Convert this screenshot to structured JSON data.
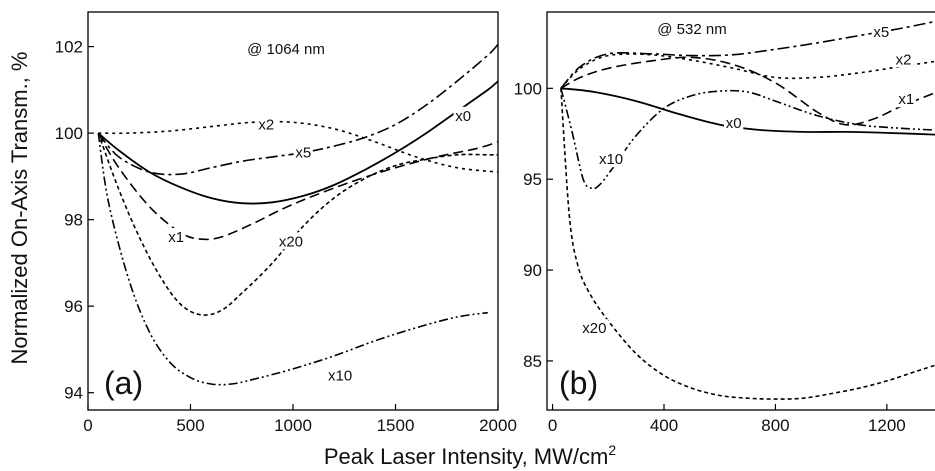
{
  "figure": {
    "ylabel": "Normalized On-Axis Transm., %",
    "xlabel_main": "Peak Laser Intensity, MW/cm",
    "xlabel_superscript": "2"
  },
  "chart_data": [
    {
      "type": "line",
      "panel": "(a)",
      "annotation": "@ 1064 nm",
      "xlim": [
        0,
        2000
      ],
      "ylim": [
        93.6,
        102.8
      ],
      "xticks": [
        0,
        500,
        1000,
        1500,
        2000
      ],
      "yticks": [
        94,
        96,
        98,
        100,
        102
      ],
      "xtick_labels": [
        "0",
        "500",
        "1000",
        "1500",
        "2000"
      ],
      "ytick_labels": [
        "94",
        "96",
        "98",
        "100",
        "102"
      ],
      "series": [
        {
          "name": "x0",
          "label_at": [
            1830,
            100.4
          ],
          "dash": "solid",
          "x": [
            50,
            150,
            300,
            450,
            600,
            750,
            900,
            1050,
            1200,
            1350,
            1500,
            1650,
            1800,
            1950,
            2000
          ],
          "y": [
            100,
            99.6,
            99.1,
            98.75,
            98.5,
            98.38,
            98.4,
            98.55,
            98.8,
            99.15,
            99.55,
            100.0,
            100.5,
            101.0,
            101.2
          ]
        },
        {
          "name": "x1",
          "label_at": [
            430,
            97.6
          ],
          "dash": "10,5",
          "x": [
            50,
            150,
            300,
            450,
            550,
            650,
            800,
            950,
            1100,
            1300,
            1500,
            1700,
            1900,
            2000
          ],
          "y": [
            100,
            99.2,
            98.3,
            97.7,
            97.55,
            97.6,
            97.9,
            98.25,
            98.55,
            98.9,
            99.2,
            99.45,
            99.65,
            99.8
          ]
        },
        {
          "name": "x2",
          "label_at": [
            870,
            100.2
          ],
          "dash": "3,4",
          "x": [
            50,
            200,
            400,
            600,
            800,
            1000,
            1200,
            1400,
            1600,
            1800,
            2000
          ],
          "y": [
            100,
            100.0,
            100.05,
            100.15,
            100.25,
            100.25,
            100.1,
            99.8,
            99.45,
            99.2,
            99.1
          ]
        },
        {
          "name": "x5",
          "label_at": [
            1050,
            99.55
          ],
          "dash": "12,4,3,4",
          "x": [
            50,
            150,
            300,
            450,
            600,
            750,
            900,
            1050,
            1200,
            1350,
            1500,
            1650,
            1800,
            1950,
            2000
          ],
          "y": [
            100,
            99.45,
            99.1,
            99.05,
            99.2,
            99.35,
            99.45,
            99.55,
            99.7,
            99.9,
            100.2,
            100.65,
            101.2,
            101.8,
            102.05
          ]
        },
        {
          "name": "x10",
          "label_at": [
            1230,
            94.4
          ],
          "dash": "9,3,2,3,2,3",
          "x": [
            50,
            100,
            200,
            300,
            400,
            500,
            600,
            700,
            800,
            1000,
            1200,
            1400,
            1600,
            1800,
            1950
          ],
          "y": [
            100,
            98.4,
            96.6,
            95.4,
            94.7,
            94.35,
            94.2,
            94.2,
            94.3,
            94.55,
            94.85,
            95.2,
            95.5,
            95.75,
            95.85
          ]
        },
        {
          "name": "x20",
          "label_at": [
            990,
            97.5
          ],
          "dash": "4,3",
          "x": [
            50,
            150,
            250,
            350,
            450,
            550,
            650,
            750,
            900,
            1050,
            1200,
            1350,
            1500,
            1650,
            1800,
            1950,
            2000
          ],
          "y": [
            100,
            98.7,
            97.6,
            96.7,
            96.05,
            95.8,
            95.9,
            96.3,
            97.0,
            97.85,
            98.5,
            98.95,
            99.25,
            99.4,
            99.5,
            99.5,
            99.5
          ]
        }
      ]
    },
    {
      "type": "line",
      "panel": "(b)",
      "annotation": "@ 532 nm",
      "xlim": [
        -20,
        1380
      ],
      "ylim": [
        82.3,
        104.2
      ],
      "xticks": [
        0,
        400,
        800,
        1200
      ],
      "yticks": [
        85,
        90,
        95,
        100
      ],
      "xtick_labels": [
        "0",
        "400",
        "800",
        "1200"
      ],
      "ytick_labels": [
        "85",
        "90",
        "95",
        "100"
      ],
      "series": [
        {
          "name": "x0",
          "label_at": [
            650,
            98.1
          ],
          "dash": "solid",
          "x": [
            30,
            150,
            300,
            450,
            600,
            750,
            900,
            1050,
            1200,
            1380
          ],
          "y": [
            100,
            99.8,
            99.3,
            98.6,
            98.0,
            97.7,
            97.6,
            97.6,
            97.55,
            97.45
          ]
        },
        {
          "name": "x1",
          "label_at": [
            1270,
            99.4
          ],
          "dash": "10,5",
          "x": [
            30,
            100,
            200,
            350,
            500,
            650,
            800,
            950,
            1050,
            1150,
            1250,
            1380
          ],
          "y": [
            100,
            100.6,
            101.1,
            101.5,
            101.7,
            101.3,
            100.3,
            98.7,
            98.0,
            98.3,
            99.0,
            99.8
          ]
        },
        {
          "name": "x2",
          "label_at": [
            1260,
            101.6
          ],
          "dash": "3,4",
          "x": [
            30,
            100,
            200,
            350,
            500,
            650,
            800,
            950,
            1100,
            1250,
            1380
          ],
          "y": [
            100,
            101.1,
            101.8,
            101.85,
            101.55,
            101.1,
            100.6,
            100.6,
            100.85,
            101.2,
            101.5
          ]
        },
        {
          "name": "x5",
          "label_at": [
            1180,
            103.1
          ],
          "dash": "12,4,3,4",
          "x": [
            30,
            100,
            200,
            350,
            500,
            650,
            800,
            950,
            1100,
            1250,
            1380
          ],
          "y": [
            100,
            101.2,
            101.9,
            101.9,
            101.8,
            101.85,
            102.15,
            102.5,
            102.9,
            103.3,
            103.7
          ]
        },
        {
          "name": "x10",
          "label_at": [
            210,
            96.1
          ],
          "dash": "9,3,2,3,2,3",
          "x": [
            30,
            70,
            110,
            140,
            170,
            220,
            300,
            400,
            500,
            600,
            700,
            800,
            950,
            1100,
            1250,
            1380
          ],
          "y": [
            100,
            97.6,
            95.0,
            94.5,
            94.7,
            95.7,
            97.4,
            98.9,
            99.6,
            99.85,
            99.8,
            99.3,
            98.5,
            98.0,
            97.8,
            97.7
          ]
        },
        {
          "name": "x20",
          "label_at": [
            150,
            86.8
          ],
          "dash": "4,3",
          "x": [
            30,
            60,
            90,
            130,
            200,
            300,
            400,
            500,
            600,
            700,
            800,
            900,
            1000,
            1100,
            1200,
            1300,
            1380
          ],
          "y": [
            100,
            93.0,
            90.3,
            88.8,
            87.2,
            85.4,
            84.2,
            83.5,
            83.1,
            82.95,
            82.9,
            82.95,
            83.2,
            83.5,
            83.9,
            84.4,
            84.8
          ]
        }
      ]
    }
  ]
}
